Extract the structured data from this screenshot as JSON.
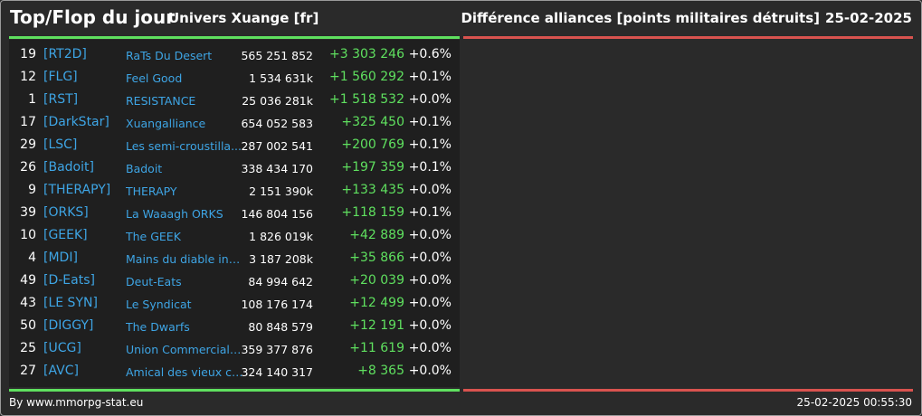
{
  "header": {
    "title": "Top/Flop du jour",
    "subtitle": "Univers Xuange [fr]",
    "right_title": "Différence alliances [points militaires détruits]",
    "date": "25-02-2025"
  },
  "colors": {
    "positive": "#5fe05f",
    "negative": "#d9534f",
    "link": "#3ea5e5",
    "background": "#2a2a2a"
  },
  "top_rows": [
    {
      "rank": "19",
      "tag": "[RT2D]",
      "name": "RaTs Du Desert",
      "points": "565 251 852",
      "delta": "+3 303 246",
      "pct": "+0.6%"
    },
    {
      "rank": "12",
      "tag": "[FLG]",
      "name": "Feel Good",
      "points": "1 534 631k",
      "delta": "+1 560 292",
      "pct": "+0.1%"
    },
    {
      "rank": "1",
      "tag": "[RST]",
      "name": "RESISTANCE",
      "points": "25 036 281k",
      "delta": "+1 518 532",
      "pct": "+0.0%"
    },
    {
      "rank": "17",
      "tag": "[DarkStar]",
      "name": "Xuangalliance",
      "points": "654 052 583",
      "delta": "+325 450",
      "pct": "+0.1%"
    },
    {
      "rank": "29",
      "tag": "[LSC]",
      "name": "Les semi-croustilla...",
      "points": "287 002 541",
      "delta": "+200 769",
      "pct": "+0.1%"
    },
    {
      "rank": "26",
      "tag": "[Badoit]",
      "name": "Badoit",
      "points": "338 434 170",
      "delta": "+197 359",
      "pct": "+0.1%"
    },
    {
      "rank": "9",
      "tag": "[THERAPY]",
      "name": "THERAPY",
      "points": "2 151 390k",
      "delta": "+133 435",
      "pct": "+0.0%"
    },
    {
      "rank": "39",
      "tag": "[ORKS]",
      "name": "La Waaagh ORKS",
      "points": "146 804 156",
      "delta": "+118 159",
      "pct": "+0.1%"
    },
    {
      "rank": "10",
      "tag": "[GEEK]",
      "name": "The GEEK",
      "points": "1 826 019k",
      "delta": "+42 889",
      "pct": "+0.0%"
    },
    {
      "rank": "4",
      "tag": "[MDI]",
      "name": "Mains du diable inco...",
      "points": "3 187 208k",
      "delta": "+35 866",
      "pct": "+0.0%"
    },
    {
      "rank": "49",
      "tag": "[D-Eats]",
      "name": "Deut-Eats",
      "points": "84 994 642",
      "delta": "+20 039",
      "pct": "+0.0%"
    },
    {
      "rank": "43",
      "tag": "[LE SYN]",
      "name": "Le Syndicat",
      "points": "108 176 174",
      "delta": "+12 499",
      "pct": "+0.0%"
    },
    {
      "rank": "50",
      "tag": "[DIGGY]",
      "name": "The Dwarfs",
      "points": "80 848 579",
      "delta": "+12 191",
      "pct": "+0.0%"
    },
    {
      "rank": "25",
      "tag": "[UCG]",
      "name": "Union Commerciale...",
      "points": "359 377 876",
      "delta": "+11 619",
      "pct": "+0.0%"
    },
    {
      "rank": "27",
      "tag": "[AVC]",
      "name": "Amical des vieux con",
      "points": "324 140 317",
      "delta": "+8 365",
      "pct": "+0.0%"
    }
  ],
  "footer": {
    "source": "By www.mmorpg-stat.eu",
    "timestamp": "25-02-2025 00:55:30"
  }
}
